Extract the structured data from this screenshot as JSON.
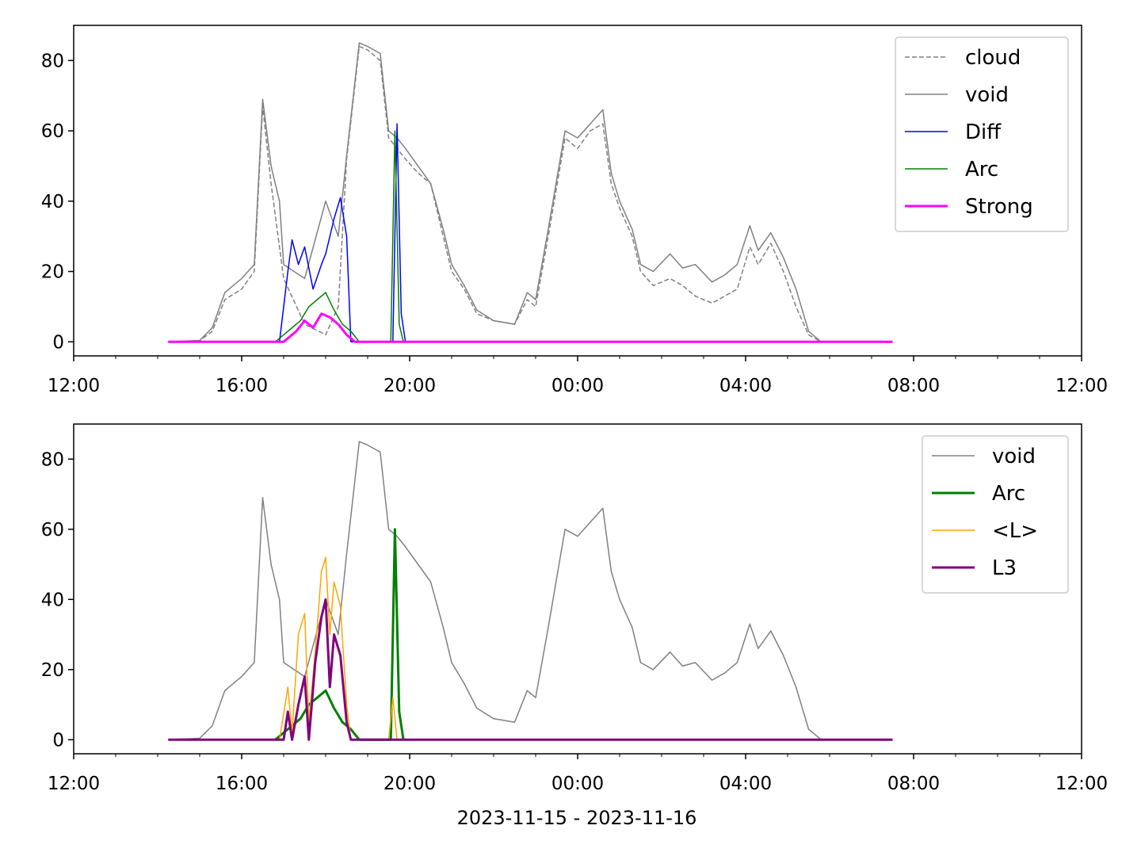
{
  "chart_data": [
    {
      "type": "line",
      "x_range": [
        "12:00",
        "12:00"
      ],
      "ylim": [
        -4,
        90
      ],
      "x_tick_labels": [
        "12:00",
        "16:00",
        "20:00",
        "00:00",
        "04:00",
        "08:00",
        "12:00"
      ],
      "x_tick_hours": [
        12,
        16,
        20,
        24,
        28,
        32,
        36
      ],
      "y_ticks": [
        0,
        20,
        40,
        60,
        80
      ],
      "legend_position": "top-right",
      "xlabel": "",
      "series": [
        {
          "name": "cloud",
          "color": "#808080",
          "dash": true,
          "width": 1.5,
          "points": [
            [
              14.25,
              0
            ],
            [
              15.0,
              0.3
            ],
            [
              15.3,
              3
            ],
            [
              15.6,
              12
            ],
            [
              16.0,
              15
            ],
            [
              16.3,
              20
            ],
            [
              16.5,
              67
            ],
            [
              16.7,
              45
            ],
            [
              17.0,
              18
            ],
            [
              17.5,
              5
            ],
            [
              18.0,
              2
            ],
            [
              18.3,
              10
            ],
            [
              18.5,
              52
            ],
            [
              18.8,
              84
            ],
            [
              19.0,
              83
            ],
            [
              19.3,
              80
            ],
            [
              19.5,
              58
            ],
            [
              19.7,
              55
            ],
            [
              19.9,
              52
            ],
            [
              20.2,
              48
            ],
            [
              20.5,
              45
            ],
            [
              20.8,
              30
            ],
            [
              21.0,
              20
            ],
            [
              21.3,
              15
            ],
            [
              21.6,
              8
            ],
            [
              22.0,
              6
            ],
            [
              22.5,
              5
            ],
            [
              22.8,
              12
            ],
            [
              23.0,
              10
            ],
            [
              23.3,
              30
            ],
            [
              23.7,
              58
            ],
            [
              24.0,
              55
            ],
            [
              24.3,
              60
            ],
            [
              24.6,
              62
            ],
            [
              24.8,
              45
            ],
            [
              25.0,
              38
            ],
            [
              25.3,
              30
            ],
            [
              25.5,
              20
            ],
            [
              25.8,
              16
            ],
            [
              26.2,
              18
            ],
            [
              26.5,
              16
            ],
            [
              26.8,
              13
            ],
            [
              27.2,
              11
            ],
            [
              27.5,
              13
            ],
            [
              27.8,
              15
            ],
            [
              28.1,
              27
            ],
            [
              28.3,
              22
            ],
            [
              28.6,
              28
            ],
            [
              28.9,
              20
            ],
            [
              29.2,
              10
            ],
            [
              29.5,
              2
            ],
            [
              29.8,
              0
            ],
            [
              31.5,
              0
            ]
          ]
        },
        {
          "name": "void",
          "color": "#808080",
          "dash": false,
          "width": 1.5,
          "points": [
            [
              14.25,
              0
            ],
            [
              15.0,
              0.4
            ],
            [
              15.3,
              4
            ],
            [
              15.6,
              14
            ],
            [
              16.0,
              18
            ],
            [
              16.3,
              22
            ],
            [
              16.5,
              69
            ],
            [
              16.7,
              50
            ],
            [
              16.9,
              40
            ],
            [
              17.0,
              22
            ],
            [
              17.5,
              18
            ],
            [
              18.0,
              40
            ],
            [
              18.3,
              30
            ],
            [
              18.5,
              53
            ],
            [
              18.8,
              85
            ],
            [
              19.0,
              84
            ],
            [
              19.3,
              82
            ],
            [
              19.5,
              60
            ],
            [
              19.7,
              58
            ],
            [
              19.9,
              55
            ],
            [
              20.2,
              50
            ],
            [
              20.5,
              45
            ],
            [
              20.8,
              32
            ],
            [
              21.0,
              22
            ],
            [
              21.3,
              16
            ],
            [
              21.6,
              9
            ],
            [
              22.0,
              6
            ],
            [
              22.5,
              5
            ],
            [
              22.8,
              14
            ],
            [
              23.0,
              12
            ],
            [
              23.3,
              32
            ],
            [
              23.7,
              60
            ],
            [
              24.0,
              58
            ],
            [
              24.3,
              62
            ],
            [
              24.6,
              66
            ],
            [
              24.8,
              48
            ],
            [
              25.0,
              40
            ],
            [
              25.3,
              32
            ],
            [
              25.5,
              22
            ],
            [
              25.8,
              20
            ],
            [
              26.2,
              25
            ],
            [
              26.5,
              21
            ],
            [
              26.8,
              22
            ],
            [
              27.2,
              17
            ],
            [
              27.5,
              19
            ],
            [
              27.8,
              22
            ],
            [
              28.1,
              33
            ],
            [
              28.3,
              26
            ],
            [
              28.6,
              31
            ],
            [
              28.9,
              24
            ],
            [
              29.2,
              15
            ],
            [
              29.5,
              3
            ],
            [
              29.8,
              0
            ],
            [
              31.5,
              0
            ]
          ]
        },
        {
          "name": "Diff",
          "color": "#0000ff",
          "dash": false,
          "width": 1.5,
          "points": [
            [
              16.9,
              0
            ],
            [
              17.1,
              20
            ],
            [
              17.2,
              29
            ],
            [
              17.35,
              22
            ],
            [
              17.5,
              27
            ],
            [
              17.7,
              15
            ],
            [
              17.9,
              22
            ],
            [
              18.0,
              25
            ],
            [
              18.2,
              35
            ],
            [
              18.35,
              41
            ],
            [
              18.5,
              30
            ],
            [
              18.6,
              0
            ],
            [
              19.6,
              0
            ],
            [
              19.7,
              62
            ],
            [
              19.8,
              8
            ],
            [
              19.9,
              0
            ]
          ]
        },
        {
          "name": "Arc",
          "color": "#008000",
          "dash": false,
          "width": 1.5,
          "points": [
            [
              16.8,
              0
            ],
            [
              17.0,
              2
            ],
            [
              17.2,
              4
            ],
            [
              17.4,
              6
            ],
            [
              17.6,
              10
            ],
            [
              17.8,
              12
            ],
            [
              18.0,
              14
            ],
            [
              18.2,
              9
            ],
            [
              18.4,
              5
            ],
            [
              18.6,
              3
            ],
            [
              18.8,
              0
            ],
            [
              19.55,
              0
            ],
            [
              19.65,
              60
            ],
            [
              19.75,
              5
            ],
            [
              19.85,
              0
            ]
          ]
        },
        {
          "name": "Strong",
          "color": "#ff00ff",
          "dash": false,
          "width": 3,
          "points": [
            [
              14.25,
              0
            ],
            [
              17.0,
              0
            ],
            [
              17.3,
              3
            ],
            [
              17.5,
              6
            ],
            [
              17.7,
              4
            ],
            [
              17.9,
              8
            ],
            [
              18.1,
              7
            ],
            [
              18.3,
              5
            ],
            [
              18.5,
              2
            ],
            [
              18.7,
              0
            ],
            [
              31.5,
              0
            ]
          ]
        }
      ]
    },
    {
      "type": "line",
      "x_range": [
        "12:00",
        "12:00"
      ],
      "ylim": [
        -4,
        90
      ],
      "x_tick_labels": [
        "12:00",
        "16:00",
        "20:00",
        "00:00",
        "04:00",
        "08:00",
        "12:00"
      ],
      "x_tick_hours": [
        12,
        16,
        20,
        24,
        28,
        32,
        36
      ],
      "y_ticks": [
        0,
        20,
        40,
        60,
        80
      ],
      "legend_position": "top-right",
      "xlabel": "2023-11-15 - 2023-11-16",
      "series": [
        {
          "name": "void",
          "color": "#808080",
          "dash": false,
          "width": 1.5,
          "points": [
            [
              14.25,
              0
            ],
            [
              15.0,
              0.4
            ],
            [
              15.3,
              4
            ],
            [
              15.6,
              14
            ],
            [
              16.0,
              18
            ],
            [
              16.3,
              22
            ],
            [
              16.5,
              69
            ],
            [
              16.7,
              50
            ],
            [
              16.9,
              40
            ],
            [
              17.0,
              22
            ],
            [
              17.5,
              18
            ],
            [
              18.0,
              40
            ],
            [
              18.3,
              30
            ],
            [
              18.5,
              53
            ],
            [
              18.8,
              85
            ],
            [
              19.0,
              84
            ],
            [
              19.3,
              82
            ],
            [
              19.5,
              60
            ],
            [
              19.7,
              58
            ],
            [
              19.9,
              55
            ],
            [
              20.2,
              50
            ],
            [
              20.5,
              45
            ],
            [
              20.8,
              32
            ],
            [
              21.0,
              22
            ],
            [
              21.3,
              16
            ],
            [
              21.6,
              9
            ],
            [
              22.0,
              6
            ],
            [
              22.5,
              5
            ],
            [
              22.8,
              14
            ],
            [
              23.0,
              12
            ],
            [
              23.3,
              32
            ],
            [
              23.7,
              60
            ],
            [
              24.0,
              58
            ],
            [
              24.3,
              62
            ],
            [
              24.6,
              66
            ],
            [
              24.8,
              48
            ],
            [
              25.0,
              40
            ],
            [
              25.3,
              32
            ],
            [
              25.5,
              22
            ],
            [
              25.8,
              20
            ],
            [
              26.2,
              25
            ],
            [
              26.5,
              21
            ],
            [
              26.8,
              22
            ],
            [
              27.2,
              17
            ],
            [
              27.5,
              19
            ],
            [
              27.8,
              22
            ],
            [
              28.1,
              33
            ],
            [
              28.3,
              26
            ],
            [
              28.6,
              31
            ],
            [
              28.9,
              24
            ],
            [
              29.2,
              15
            ],
            [
              29.5,
              3
            ],
            [
              29.8,
              0
            ],
            [
              31.5,
              0
            ]
          ]
        },
        {
          "name": "Arc",
          "color": "#008000",
          "dash": false,
          "width": 3,
          "points": [
            [
              16.8,
              0
            ],
            [
              17.0,
              2
            ],
            [
              17.2,
              4
            ],
            [
              17.4,
              6
            ],
            [
              17.6,
              10
            ],
            [
              17.8,
              12
            ],
            [
              18.0,
              14
            ],
            [
              18.2,
              9
            ],
            [
              18.4,
              5
            ],
            [
              18.6,
              3
            ],
            [
              18.8,
              0
            ],
            [
              19.55,
              0
            ],
            [
              19.65,
              60
            ],
            [
              19.75,
              8
            ],
            [
              19.85,
              0
            ]
          ]
        },
        {
          "name": "<L>",
          "color": "#ffa500",
          "dash": false,
          "width": 1.5,
          "points": [
            [
              16.9,
              0
            ],
            [
              17.1,
              15
            ],
            [
              17.2,
              2
            ],
            [
              17.35,
              30
            ],
            [
              17.5,
              36
            ],
            [
              17.6,
              5
            ],
            [
              17.75,
              25
            ],
            [
              17.9,
              48
            ],
            [
              18.0,
              52
            ],
            [
              18.1,
              30
            ],
            [
              18.2,
              45
            ],
            [
              18.35,
              38
            ],
            [
              18.5,
              10
            ],
            [
              18.6,
              0
            ],
            [
              19.5,
              0
            ],
            [
              19.6,
              12
            ],
            [
              19.7,
              0
            ]
          ]
        },
        {
          "name": "L3",
          "color": "#800080",
          "dash": false,
          "width": 3,
          "points": [
            [
              14.25,
              0
            ],
            [
              17.0,
              0
            ],
            [
              17.1,
              8
            ],
            [
              17.2,
              0
            ],
            [
              17.35,
              10
            ],
            [
              17.5,
              18
            ],
            [
              17.6,
              0
            ],
            [
              17.75,
              22
            ],
            [
              17.9,
              35
            ],
            [
              18.0,
              40
            ],
            [
              18.1,
              15
            ],
            [
              18.2,
              30
            ],
            [
              18.35,
              24
            ],
            [
              18.5,
              5
            ],
            [
              18.6,
              0
            ],
            [
              31.5,
              0
            ]
          ]
        }
      ]
    }
  ]
}
